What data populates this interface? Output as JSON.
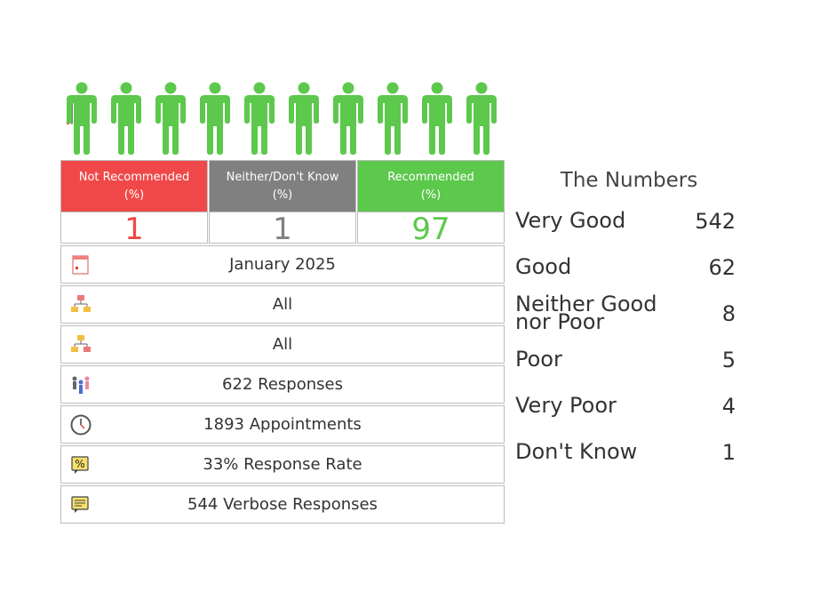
{
  "nps": {
    "not_recommended": {
      "label_line1": "Not Recommended",
      "label_line2": "(%)",
      "value": "1",
      "color": "#f04848"
    },
    "neither": {
      "label_line1": "Neither/Don't Know",
      "label_line2": "(%)",
      "value": "1",
      "color": "#808080"
    },
    "recommended": {
      "label_line1": "Recommended",
      "label_line2": "(%)",
      "value": "97",
      "color": "#5cc84c"
    }
  },
  "info_rows": {
    "period": {
      "text": "January 2025",
      "icon": "calendar-icon"
    },
    "org_filter_1": {
      "text": "All",
      "icon": "org-chart-icon"
    },
    "org_filter_2": {
      "text": "All",
      "icon": "org-chart-icon"
    },
    "responses": {
      "text": "622 Responses",
      "icon": "people-icon"
    },
    "appointments": {
      "text": "1893 Appointments",
      "icon": "clock-icon"
    },
    "response_rate": {
      "text": "33% Response Rate",
      "icon": "percent-icon"
    },
    "verbose": {
      "text": "544 Verbose Responses",
      "icon": "comment-icon"
    }
  },
  "numbers": {
    "title": "The Numbers",
    "very_good": {
      "label": "Very Good",
      "value": "542"
    },
    "good": {
      "label": "Good",
      "value": "62"
    },
    "neither_line1": "Neither Good",
    "neither_line2": "nor Poor",
    "neither_value": "8",
    "poor": {
      "label": "Poor",
      "value": "5"
    },
    "very_poor": {
      "label": "Very Poor",
      "value": "4"
    },
    "dont_know": {
      "label": "Don't Know",
      "value": "1"
    }
  },
  "colors": {
    "person_green": "#5cc84c",
    "red": "#f04848",
    "gray": "#808080"
  }
}
